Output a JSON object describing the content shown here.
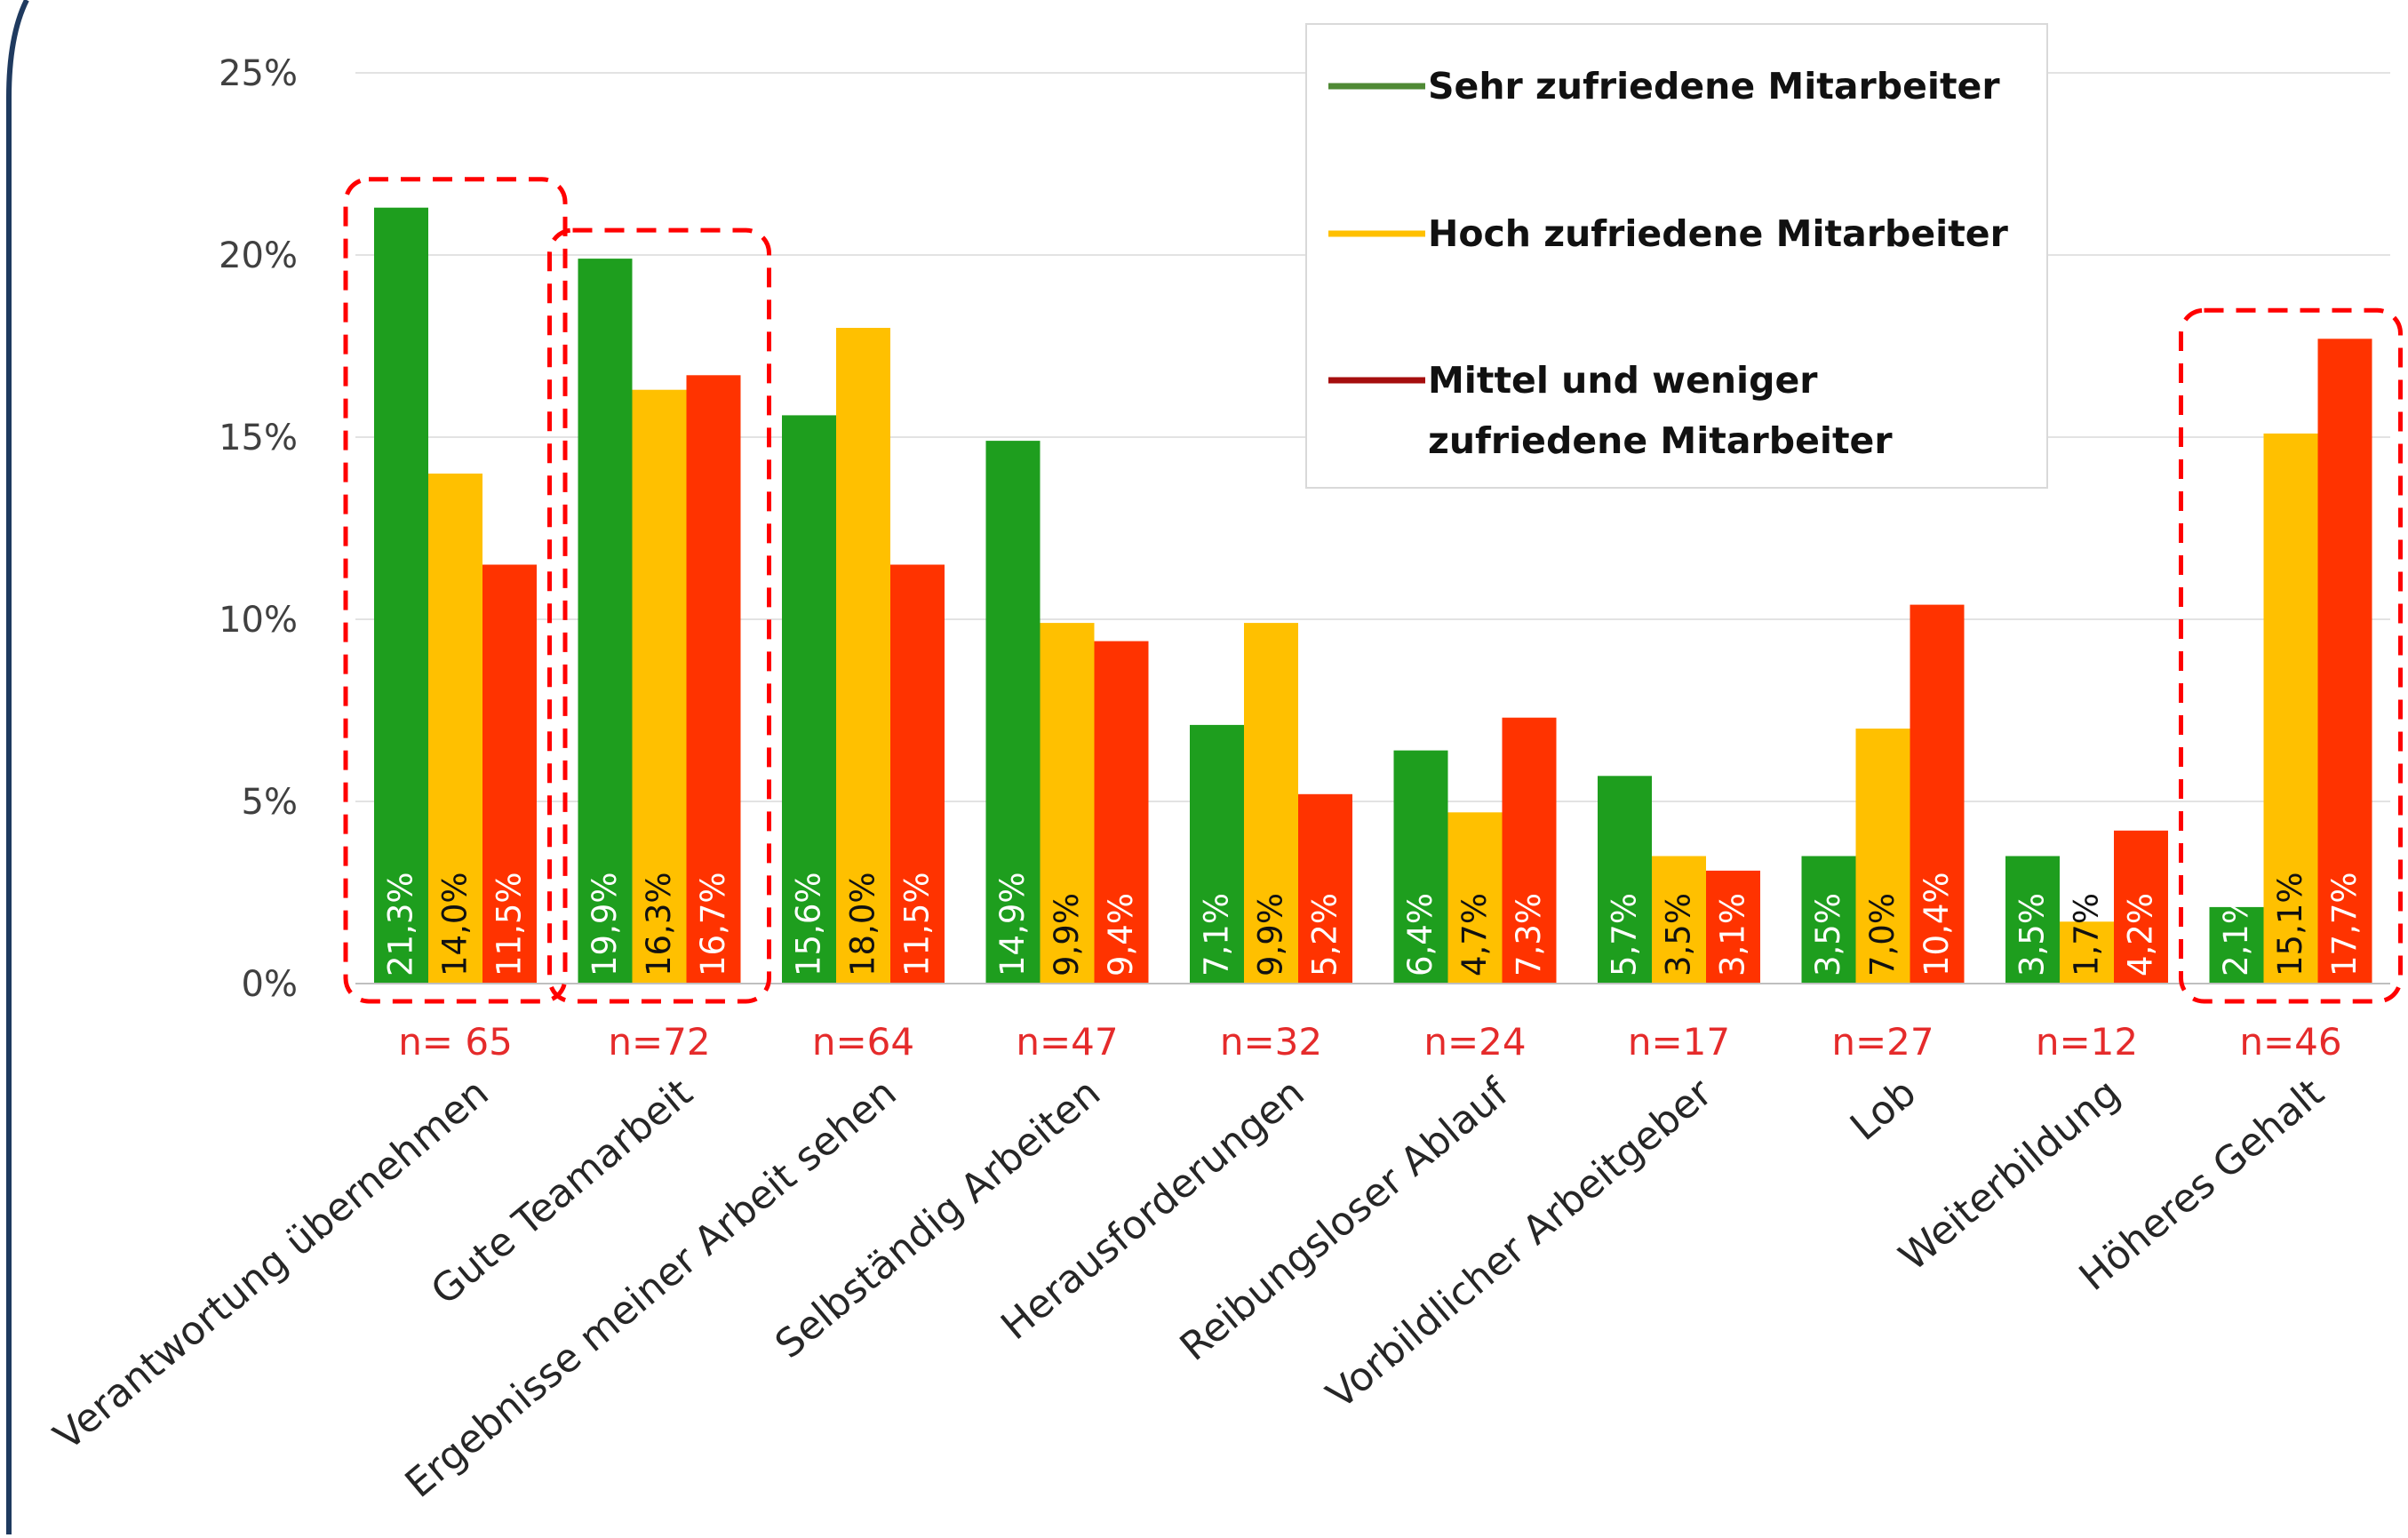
{
  "chart_data": {
    "type": "bar",
    "ylim": [
      0,
      25
    ],
    "yticks": [
      "0%",
      "5%",
      "10%",
      "15%",
      "20%",
      "25%"
    ],
    "grid": true,
    "legend_position": "top-right",
    "categories": [
      "Verantwortung übernehmen",
      "Gute Teamarbeit",
      "Ergebnisse meiner Arbeit sehen",
      "Selbständig Arbeiten",
      "Herausforderungen",
      "Reibungsloser Ablauf",
      "Vorbildlicher Arbeitgeber",
      "Lob",
      "Weiterbildung",
      "Höheres Gehalt"
    ],
    "n_labels": [
      "n= 65",
      "n=72",
      "n=64",
      "n=47",
      "n=32",
      "n=24",
      "n=17",
      "n=27",
      "n=12",
      "n=46"
    ],
    "series": [
      {
        "name": "Sehr zufriedene Mitarbeiter",
        "color": "#1e9e1e",
        "legend_color": "#4f8a35",
        "label_color": "#ffffff",
        "values": [
          21.3,
          19.9,
          15.6,
          14.9,
          7.1,
          6.4,
          5.7,
          3.5,
          3.5,
          2.1
        ],
        "labels": [
          "21,3%",
          "19,9%",
          "15,6%",
          "14,9%",
          "7,1%",
          "6,4%",
          "5,7%",
          "3,5%",
          "3,5%",
          "2,1%"
        ]
      },
      {
        "name": "Hoch zufriedene Mitarbeiter",
        "color": "#ffc000",
        "legend_color": "#ffc000",
        "label_color": "#111111",
        "values": [
          14.0,
          16.3,
          18.0,
          9.9,
          9.9,
          4.7,
          3.5,
          7.0,
          1.7,
          15.1
        ],
        "labels": [
          "14,0%",
          "16,3%",
          "18,0%",
          "9,9%",
          "9,9%",
          "4,7%",
          "3,5%",
          "7,0%",
          "1,7%",
          "15,1%"
        ]
      },
      {
        "name": "Mittel und weniger zufriedene Mitarbeiter",
        "name_lines": [
          "Mittel und weniger",
          "zufriedene Mitarbeiter"
        ],
        "color": "#ff3300",
        "legend_color": "#a50e0e",
        "label_color": "#ffffff",
        "values": [
          11.5,
          16.7,
          11.5,
          9.4,
          5.2,
          7.3,
          3.1,
          10.4,
          4.2,
          17.7
        ],
        "labels": [
          "11,5%",
          "16,7%",
          "11,5%",
          "9,4%",
          "5,2%",
          "7,3%",
          "3,1%",
          "10,4%",
          "4,2%",
          "17,7%"
        ]
      }
    ],
    "highlighted_groups": [
      0,
      1,
      9
    ],
    "highlight_color": "#ff0000",
    "n_label_color": "#e52b2b",
    "frame_color": "#1f3a5f"
  }
}
